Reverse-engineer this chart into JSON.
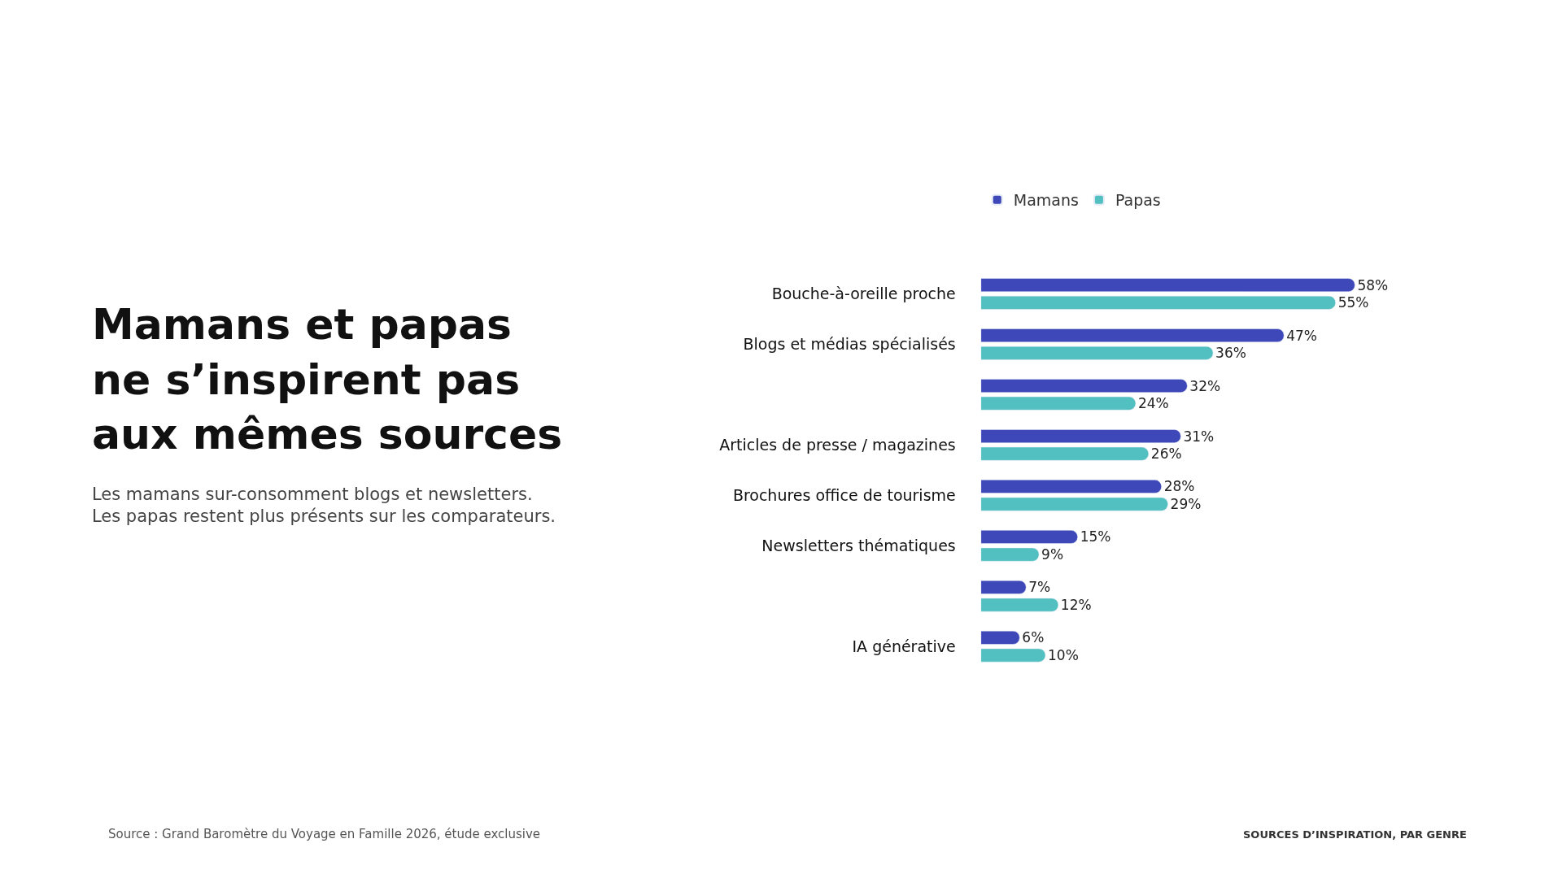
{
  "chart_data": {
    "type": "bar",
    "orientation": "horizontal",
    "title": "Mamans et papas\nne s’inspirent pas\naux mêmes sources",
    "subtitle": "Les mamans sur-consomment blogs et newsletters.\nLes papas restent plus présents sur les comparateurs.",
    "categories": [
      "Bouche-à-oreille proche",
      "Blogs et médias spécialisés",
      null,
      "Articles de presse / magazines",
      "Brochures office de tourisme",
      "Newsletters thématiques",
      null,
      "IA générative"
    ],
    "series": [
      {
        "name": "Mamans",
        "color": "#3f48b8",
        "values": [
          58,
          47,
          32,
          31,
          28,
          15,
          7,
          6
        ],
        "value_labels": [
          "58%",
          "47%",
          "32%",
          "31%",
          "28%",
          "15%",
          "7%",
          "6%"
        ]
      },
      {
        "name": "Papas",
        "color": "#52bfc0",
        "values": [
          55,
          36,
          24,
          26,
          29,
          9,
          12,
          10
        ],
        "value_labels": [
          "55%",
          "36%",
          "24%",
          "26%",
          "29%",
          "9%",
          "12%",
          "10%"
        ]
      }
    ],
    "legend": "top left",
    "annotations": [
      "Source : Grand Baromètre du Voyage en Famille 2026, étude exclusive",
      "SOURCES D’INSPIRATION, PAR GENRE"
    ]
  }
}
